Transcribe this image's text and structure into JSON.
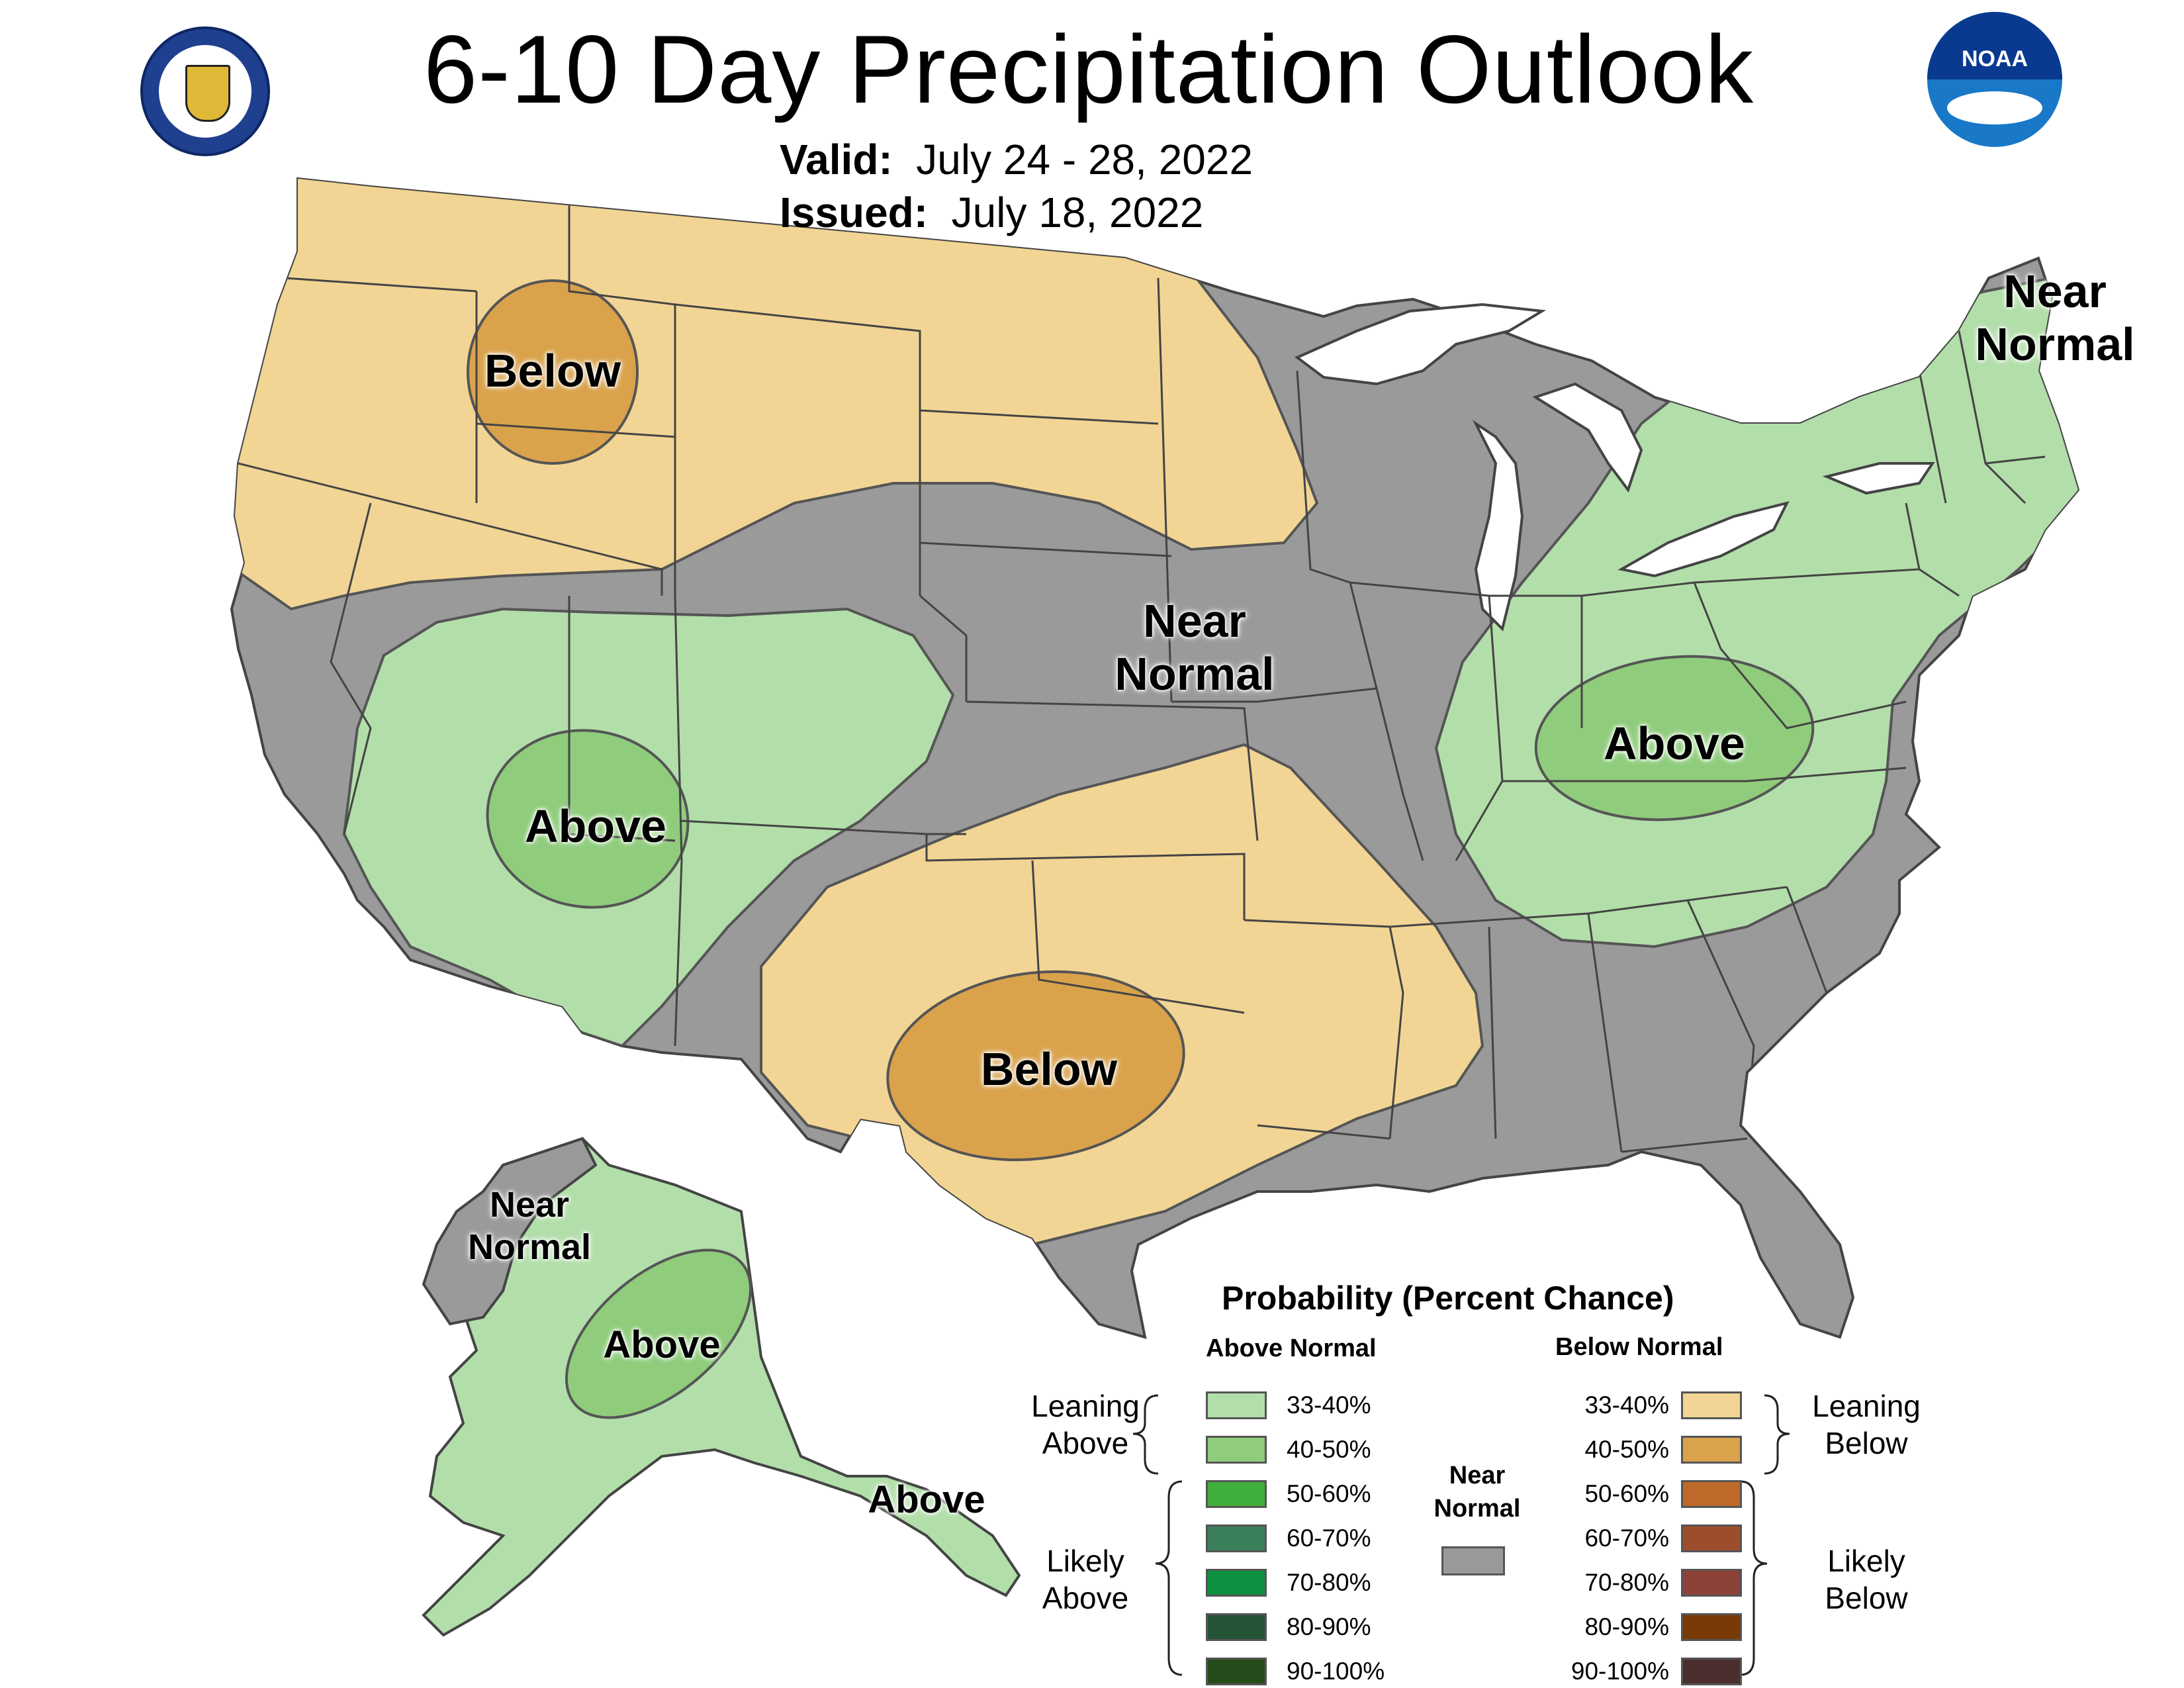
{
  "header": {
    "title": "6-10 Day Precipitation Outlook",
    "valid_label": "Valid:",
    "valid_value": "July 24 - 28, 2022",
    "issued_label": "Issued:",
    "issued_value": "July 18, 2022"
  },
  "logos": {
    "left": "department-of-commerce-seal",
    "right": "noaa-logo",
    "right_text": "NOAA"
  },
  "colors": {
    "near_normal": "#9a9a9a",
    "above_33_40": "#b2deaa",
    "above_40_50": "#8fcc7c",
    "below_33_40": "#f2d594",
    "below_40_50": "#d9a24b",
    "lakes": "#ffffff",
    "borders": "#444444"
  },
  "regions": {
    "nw_below": "Below",
    "sw_above": "Above",
    "central_near": "Near\nNormal",
    "tx_below": "Below",
    "ohio_above": "Above",
    "ne_near": "Near\nNormal",
    "ak_near": "Near\nNormal",
    "ak_above": "Above",
    "ak_se_above": "Above"
  },
  "legend": {
    "title": "Probability (Percent Chance)",
    "above_header": "Above Normal",
    "below_header": "Below Normal",
    "near_label": "Near\nNormal",
    "near_color": "#999999",
    "group_leaning_above": "Leaning\nAbove",
    "group_likely_above": "Likely\nAbove",
    "group_leaning_below": "Leaning\nBelow",
    "group_likely_below": "Likely\nBelow",
    "above": [
      {
        "label": "33-40%",
        "color": "#b2deaa"
      },
      {
        "label": "40-50%",
        "color": "#8fcc7c"
      },
      {
        "label": "50-60%",
        "color": "#3fae3a"
      },
      {
        "label": "60-70%",
        "color": "#3b7f5b"
      },
      {
        "label": "70-80%",
        "color": "#0c9140"
      },
      {
        "label": "80-90%",
        "color": "#255336"
      },
      {
        "label": "90-100%",
        "color": "#244b19"
      }
    ],
    "below": [
      {
        "label": "33-40%",
        "color": "#f2d594"
      },
      {
        "label": "40-50%",
        "color": "#d9a24b"
      },
      {
        "label": "50-60%",
        "color": "#bd6a2b"
      },
      {
        "label": "60-70%",
        "color": "#9c4e2c"
      },
      {
        "label": "70-80%",
        "color": "#8c4236"
      },
      {
        "label": "80-90%",
        "color": "#7a3a06"
      },
      {
        "label": "90-100%",
        "color": "#4b2d2d"
      }
    ]
  }
}
